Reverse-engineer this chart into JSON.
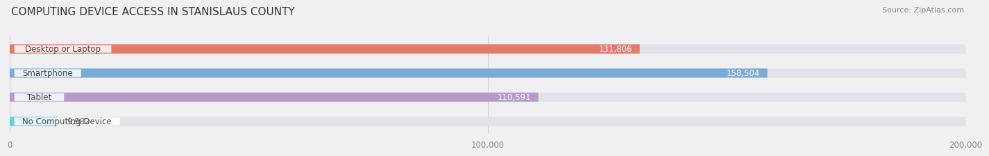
{
  "title": "COMPUTING DEVICE ACCESS IN STANISLAUS COUNTY",
  "source": "Source: ZipAtlas.com",
  "categories": [
    "Desktop or Laptop",
    "Smartphone",
    "Tablet",
    "No Computing Device"
  ],
  "values": [
    131806,
    158504,
    110591,
    9982
  ],
  "bar_colors": [
    "#e8796a",
    "#7aacd6",
    "#b59bc8",
    "#6dcdd4"
  ],
  "bg_color": "#f0f0f2",
  "bar_bg_color": "#e2e2e8",
  "xlim": [
    0,
    200000
  ],
  "xticks": [
    0,
    100000,
    200000
  ],
  "xtick_labels": [
    "0",
    "100,000",
    "200,000"
  ],
  "value_label_color_inside": "#ffffff",
  "value_label_color_outside": "#666666",
  "bar_height": 0.38,
  "bar_label_fontsize": 8.5,
  "category_fontsize": 8.5,
  "title_fontsize": 11,
  "source_fontsize": 8
}
